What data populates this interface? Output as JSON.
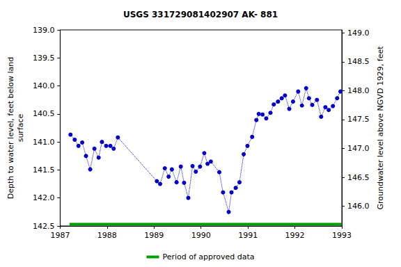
{
  "chart_data": {
    "type": "line",
    "title": "USGS 331729081402907 AK- 881",
    "x_label": null,
    "y_label": "Depth to water level, feet below land\nsurface",
    "y2_label": "Groundwater level above NGVD 1929, feet",
    "xlim": [
      1987,
      1993
    ],
    "xticks": [
      1987,
      1988,
      1989,
      1990,
      1991,
      1992,
      1993
    ],
    "ylim": [
      139.0,
      142.5
    ],
    "yticks": [
      {
        "value": 139.0,
        "label": "139.0"
      },
      {
        "value": 139.5,
        "label": "139.5"
      },
      {
        "value": 140.0,
        "label": "140.0"
      },
      {
        "value": 140.5,
        "label": "140.5"
      },
      {
        "value": 141.0,
        "label": "141.0"
      },
      {
        "value": 141.5,
        "label": "141.5"
      },
      {
        "value": 142.0,
        "label": "142.0"
      },
      {
        "value": 142.5,
        "label": "142.5"
      }
    ],
    "y2lim": [
      145.66,
      149.05
    ],
    "y2ticks": [
      {
        "value": 146.0,
        "label": "146.0"
      },
      {
        "value": 146.5,
        "label": "146.5"
      },
      {
        "value": 147.0,
        "label": "147.0"
      },
      {
        "value": 147.5,
        "label": "147.5"
      },
      {
        "value": 148.0,
        "label": "148.0"
      },
      {
        "value": 148.5,
        "label": "148.5"
      },
      {
        "value": 149.0,
        "label": "149.0"
      }
    ],
    "grid": false,
    "legend": "bottom",
    "series": [
      {
        "color": "#0000cc",
        "marker": "circle",
        "line_style": "dotted",
        "x": [
          1987.22,
          1987.31,
          1987.39,
          1987.47,
          1987.55,
          1987.64,
          1987.73,
          1987.82,
          1987.89,
          1987.98,
          1988.07,
          1988.14,
          1988.23,
          1989.06,
          1989.13,
          1989.23,
          1989.31,
          1989.38,
          1989.48,
          1989.57,
          1989.64,
          1989.73,
          1989.82,
          1989.89,
          1989.98,
          1990.07,
          1990.14,
          1990.21,
          1990.39,
          1990.47,
          1990.59,
          1990.65,
          1990.74,
          1990.82,
          1990.91,
          1990.99,
          1991.09,
          1991.18,
          1991.23,
          1991.31,
          1991.39,
          1991.48,
          1991.55,
          1991.64,
          1991.72,
          1991.79,
          1991.88,
          1991.96,
          1992.07,
          1992.15,
          1992.24,
          1992.3,
          1992.37,
          1992.47,
          1992.56,
          1992.65,
          1992.72,
          1992.81,
          1992.9,
          1992.97
        ],
        "values": [
          140.87,
          140.96,
          141.07,
          141.01,
          141.25,
          141.49,
          141.12,
          141.28,
          141.0,
          141.07,
          141.07,
          141.12,
          140.92,
          141.7,
          141.75,
          141.47,
          141.62,
          141.49,
          141.72,
          141.44,
          141.73,
          142.0,
          141.43,
          141.53,
          141.44,
          141.2,
          141.39,
          141.35,
          141.54,
          141.9,
          142.25,
          141.9,
          141.82,
          141.72,
          141.22,
          141.07,
          140.91,
          140.61,
          140.5,
          140.51,
          140.58,
          140.48,
          140.33,
          140.28,
          140.22,
          140.17,
          140.41,
          140.28,
          140.1,
          140.35,
          140.04,
          140.22,
          140.34,
          140.25,
          140.55,
          140.38,
          140.43,
          140.36,
          140.22,
          140.1
        ]
      }
    ],
    "approved_period": {
      "name": "Period of approved data",
      "color": "#00a000",
      "x": [
        1987.2,
        1993.0
      ],
      "value": 142.47
    }
  }
}
